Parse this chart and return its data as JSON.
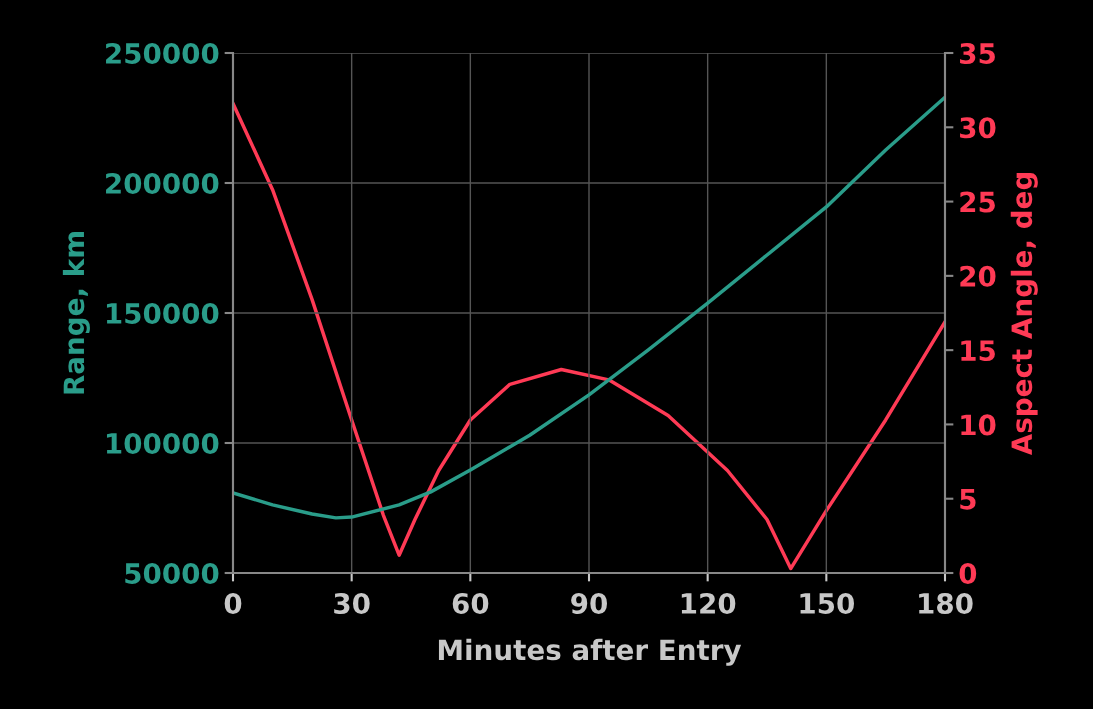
{
  "chart_data": {
    "type": "line",
    "xlabel": "Minutes after Entry",
    "ylabel": "Range, km",
    "y2label": "Aspect Angle, deg",
    "xlim": [
      0,
      180
    ],
    "xticks": [
      0,
      30,
      60,
      90,
      120,
      150,
      180
    ],
    "ylim": [
      50000,
      250000
    ],
    "yticks": [
      50000,
      100000,
      150000,
      200000,
      250000
    ],
    "y2lim": [
      0,
      35
    ],
    "y2ticks": [
      0,
      5,
      10,
      15,
      20,
      25,
      30,
      35
    ],
    "grid": true,
    "legend": false,
    "marker": "none",
    "line_style": "solid",
    "series": [
      {
        "color": "#2a9d8a",
        "x": [
          0,
          10,
          20,
          26,
          30,
          42,
          50,
          60,
          75,
          90,
          105,
          120,
          135,
          150,
          165,
          180
        ],
        "values": [
          80800,
          76200,
          72700,
          71200,
          71500,
          76200,
          81200,
          89600,
          103000,
          118500,
          135800,
          153800,
          172300,
          190800,
          212700,
          233000
        ]
      },
      {
        "color": "#ff3a55",
        "axis": "y2",
        "x": [
          0,
          10,
          20,
          30,
          38,
          42,
          46,
          52,
          60,
          70,
          83,
          95,
          110,
          125,
          135,
          141,
          150,
          165,
          180
        ],
        "values": [
          31.6,
          25.8,
          18.4,
          10.3,
          3.9,
          1.2,
          3.6,
          6.9,
          10.3,
          12.7,
          13.7,
          13.0,
          10.6,
          6.9,
          3.6,
          0.3,
          4.2,
          10.3,
          16.9
        ]
      }
    ]
  }
}
